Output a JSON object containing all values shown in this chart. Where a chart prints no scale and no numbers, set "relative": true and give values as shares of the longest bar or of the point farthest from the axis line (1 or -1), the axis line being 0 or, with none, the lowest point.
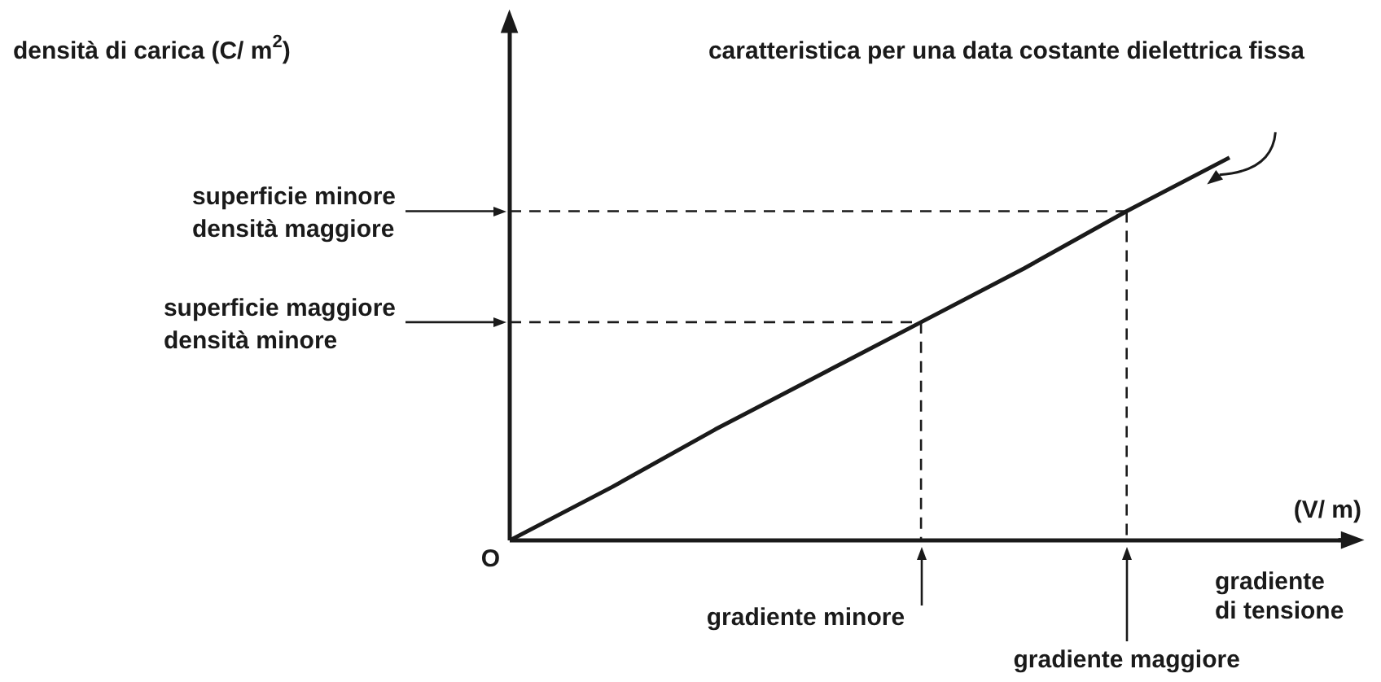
{
  "chart_data": {
    "type": "line",
    "relative": true,
    "xlabel": "(V/ m)",
    "categories": [
      null,
      null,
      null,
      null,
      null,
      null,
      null,
      null
    ],
    "series": [
      {
        "color": "#1a1a1a",
        "values": [
          0,
          0.14,
          0.29,
          0.43,
          0.57,
          0.71,
          0.86,
          1
        ]
      }
    ],
    "ref_lines": [
      {
        "axis": "y",
        "value": 0.57,
        "label": "superficie maggiore\ndensità minore",
        "line_style": "dashed"
      },
      {
        "axis": "y",
        "value": 0.86,
        "label": "superficie minore\ndensità maggiore",
        "line_style": "dashed"
      }
    ],
    "annotations": [
      "caratteristica per una data costante dielettrica fissa",
      "O",
      "gradiente\ndi tensione",
      "densità di carica (C/ m$^{2}$)",
      "gradiente minore",
      "gradiente maggiore"
    ],
    "marker": "none",
    "line_style": "solid"
  }
}
